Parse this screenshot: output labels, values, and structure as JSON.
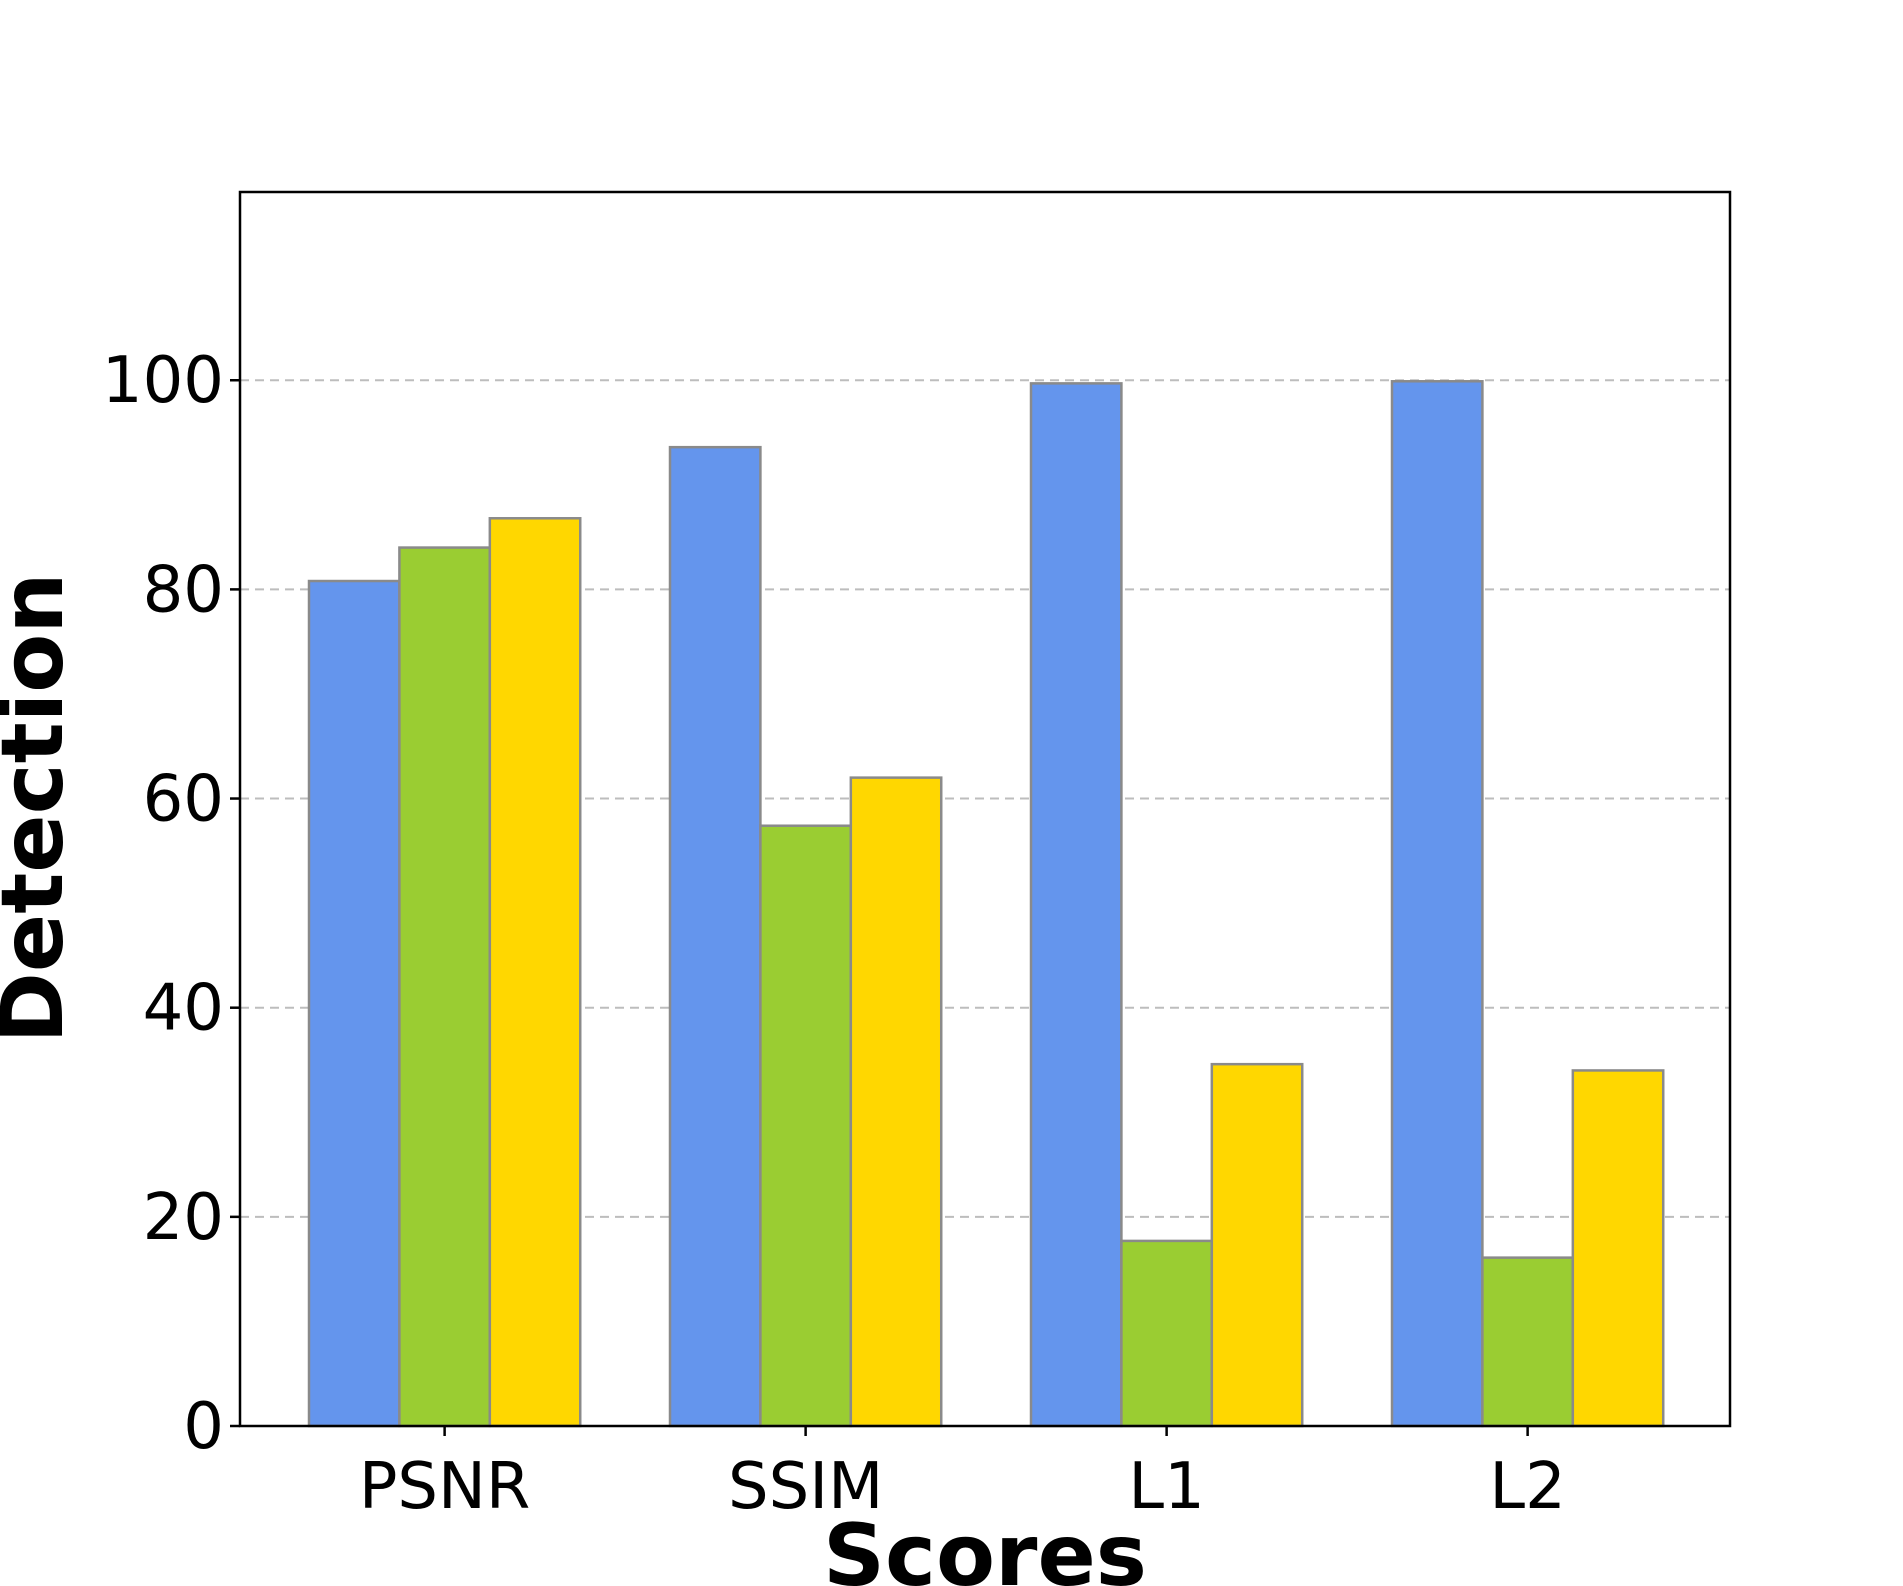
{
  "chart_data": {
    "type": "bar",
    "title": "",
    "xlabel": "Scores",
    "ylabel": "Detection",
    "categories": [
      "PSNR",
      "SSIM",
      "L1",
      "L2"
    ],
    "series": [
      {
        "values": [
          80.8,
          93.6,
          99.7,
          99.9
        ],
        "color": "#6495ED"
      },
      {
        "values": [
          84.0,
          57.4,
          17.7,
          16.1
        ],
        "color": "#9ACD32"
      },
      {
        "values": [
          86.8,
          62.0,
          34.6,
          34.0
        ],
        "color": "#FFD700"
      }
    ],
    "ylim": [
      0,
      118
    ],
    "yticks": [
      "0",
      "20",
      "40",
      "60",
      "80",
      "100"
    ],
    "grid": true,
    "legend": "none"
  }
}
